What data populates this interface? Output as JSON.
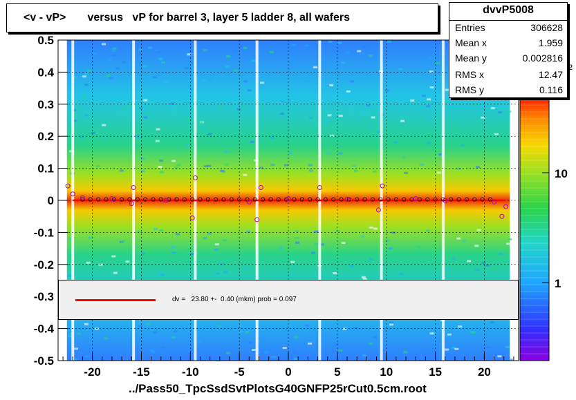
{
  "title": "<v - vP>       versus   vP for barrel 3, layer 5 ladder 8, all wafers",
  "footer": "../Pass50_TpcSsdSvtPlotsG40GNFP25rCut0.5cm.root",
  "stats": {
    "name": "dvvP5008",
    "rows": [
      {
        "label": "Entries",
        "value": "306628"
      },
      {
        "label": "Mean x",
        "value": "1.959"
      },
      {
        "label": "Mean y",
        "value": "0.002816"
      },
      {
        "label": "RMS x",
        "value": "12.47"
      },
      {
        "label": "RMS y",
        "value": "0.116"
      }
    ]
  },
  "legend": {
    "text": "dv =   23.80 +-  0.40 (mkm) prob = 0.097",
    "line_color": "#ff0000"
  },
  "colors": {
    "fit_line": "#ff0000",
    "marker": "#b000b0",
    "axis": "#000000"
  },
  "chart_data": {
    "type": "heatmap",
    "xlim": [
      -23.5,
      23.5
    ],
    "ylim": [
      -0.5,
      0.5
    ],
    "xticks": [
      -20,
      -15,
      -10,
      -5,
      0,
      5,
      10,
      15,
      20
    ],
    "yticks": [
      0.5,
      0.4,
      0.3,
      0.2,
      0.1,
      0,
      -0.1,
      -0.2,
      -0.3,
      -0.4,
      -0.5
    ],
    "xtick_labels": [
      "-20",
      "-15",
      "-10",
      "-5",
      "0",
      "5",
      "10",
      "15",
      "20"
    ],
    "ytick_labels": [
      "0.5",
      "0.4",
      "0.3",
      "0.2",
      "0.1",
      "0",
      "-0.1",
      "-0.2",
      "-0.3",
      "-0.4",
      "-0.5"
    ],
    "z_scale": "log",
    "z_labels": [
      "10",
      "1"
    ],
    "z_exponent_label": "2",
    "grid": true,
    "gap_columns_x": [
      -22.0,
      -15.8,
      -9.5,
      -3.2,
      3.2,
      9.5,
      15.8
    ],
    "fit_line": {
      "x": [
        -22.0,
        22.0
      ],
      "y": [
        0.0,
        0.0
      ]
    },
    "profile_points": [
      {
        "x": -22.5,
        "y": 0.045
      },
      {
        "x": -22.0,
        "y": 0.02
      },
      {
        "x": -21.0,
        "y": 0.008
      },
      {
        "x": -18.0,
        "y": 0.005
      },
      {
        "x": -16.0,
        "y": -0.01
      },
      {
        "x": -15.8,
        "y": 0.04
      },
      {
        "x": -12.5,
        "y": 0.0
      },
      {
        "x": -9.8,
        "y": -0.055
      },
      {
        "x": -9.5,
        "y": 0.07
      },
      {
        "x": -4.0,
        "y": -0.005
      },
      {
        "x": -3.2,
        "y": -0.06
      },
      {
        "x": -2.8,
        "y": 0.04
      },
      {
        "x": 0.0,
        "y": 0.005
      },
      {
        "x": 3.2,
        "y": 0.04
      },
      {
        "x": 6.0,
        "y": 0.003
      },
      {
        "x": 9.2,
        "y": -0.03
      },
      {
        "x": 9.6,
        "y": 0.045
      },
      {
        "x": 13.0,
        "y": 0.005
      },
      {
        "x": 16.0,
        "y": 0.0
      },
      {
        "x": 21.0,
        "y": -0.005
      },
      {
        "x": 21.8,
        "y": -0.05
      },
      {
        "x": 22.2,
        "y": -0.02
      }
    ]
  }
}
